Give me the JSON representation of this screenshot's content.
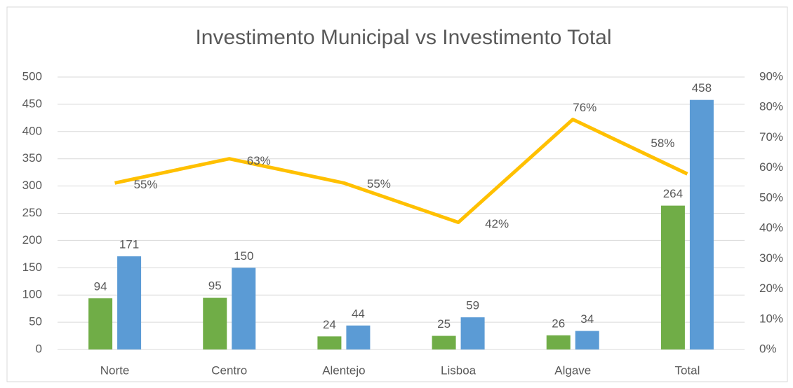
{
  "chart_data": {
    "type": "bar+line",
    "title": "Investimento Municipal vs Investimento Total",
    "categories": [
      "Norte",
      "Centro",
      "Alentejo",
      "Lisboa",
      "Algave",
      "Total"
    ],
    "series": [
      {
        "type": "bar",
        "color": "#70ad47",
        "values": [
          94,
          95,
          24,
          25,
          26,
          264
        ]
      },
      {
        "type": "bar",
        "color": "#5b9bd5",
        "values": [
          171,
          150,
          44,
          59,
          34,
          458
        ]
      },
      {
        "type": "line",
        "axis": "y2",
        "color": "#ffc000",
        "values": [
          55,
          63,
          55,
          42,
          76,
          58
        ],
        "value_labels": [
          "55%",
          "63%",
          "55%",
          "42%",
          "76%",
          "58%"
        ]
      }
    ],
    "ylim": [
      0,
      500
    ],
    "yticks": [
      0,
      50,
      100,
      150,
      200,
      250,
      300,
      350,
      400,
      450,
      500
    ],
    "y2lim": [
      0,
      90
    ],
    "y2ticks": [
      {
        "value": 0,
        "label": "0%"
      },
      {
        "value": 10,
        "label": "10%"
      },
      {
        "value": 20,
        "label": "20%"
      },
      {
        "value": 30,
        "label": "30%"
      },
      {
        "value": 40,
        "label": "40%"
      },
      {
        "value": 50,
        "label": "50%"
      },
      {
        "value": 60,
        "label": "60%"
      },
      {
        "value": 70,
        "label": "70%"
      },
      {
        "value": 80,
        "label": "80%"
      },
      {
        "value": 90,
        "label": "90%"
      }
    ],
    "grid": true
  }
}
